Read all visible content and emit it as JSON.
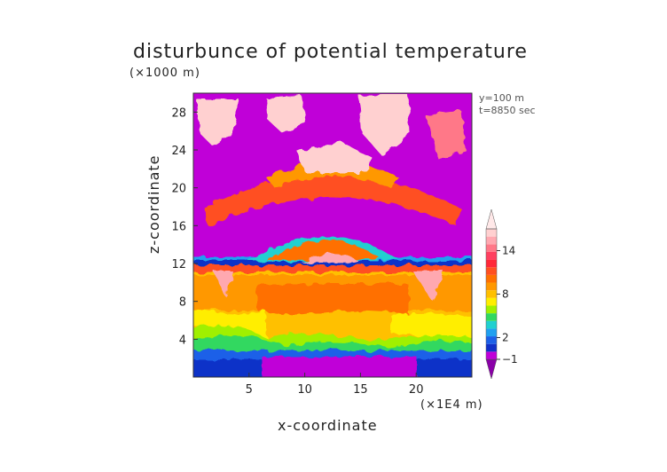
{
  "chart_data": {
    "type": "heatmap",
    "title": "disturbunce of potential temperature",
    "xlabel": "x-coordinate",
    "ylabel": "z-coordinate",
    "x_unit": "(×1E4 m)",
    "z_unit": "(×1000 m)",
    "annotations": [
      "y=100 m",
      "t=8850 sec"
    ],
    "xlim": [
      0,
      25
    ],
    "ylim": [
      0,
      30
    ],
    "x_ticks": [
      5,
      10,
      15,
      20
    ],
    "y_ticks": [
      4,
      8,
      12,
      16,
      20,
      24,
      28
    ],
    "colorbar": {
      "levels": [
        -1,
        0,
        1,
        2,
        3,
        4,
        5,
        6,
        7,
        8,
        9,
        10,
        11,
        12,
        13,
        14,
        15,
        16,
        17
      ],
      "labels": [
        "14",
        "8",
        "2",
        "−1"
      ],
      "colors": [
        "#8a00a8",
        "#c000d8",
        "#1030c8",
        "#1c60e8",
        "#20a0f0",
        "#20d0d0",
        "#30d860",
        "#a0f000",
        "#ffee00",
        "#ffc000",
        "#ff9800",
        "#ff7000",
        "#ff5020",
        "#ff2838",
        "#ff4060",
        "#ff7888",
        "#ffa8b0",
        "#ffd0d0",
        "#ffe8e8"
      ]
    }
  }
}
